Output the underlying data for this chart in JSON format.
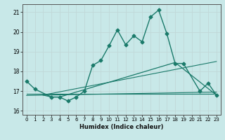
{
  "xlabel": "Humidex (Indice chaleur)",
  "ylabel": "",
  "bg_color": "#c8e8e8",
  "grid_color": "#c0d8d8",
  "line_color": "#1a7a6a",
  "xlim": [
    -0.5,
    23.5
  ],
  "ylim": [
    15.8,
    21.4
  ],
  "xticks": [
    0,
    1,
    2,
    3,
    4,
    5,
    6,
    7,
    8,
    9,
    10,
    11,
    12,
    13,
    14,
    15,
    16,
    17,
    18,
    19,
    20,
    21,
    22,
    23
  ],
  "yticks": [
    16,
    17,
    18,
    19,
    20,
    21
  ],
  "series": [
    {
      "x": [
        0,
        1,
        3,
        4,
        5,
        6,
        7,
        8,
        9,
        10,
        11,
        12,
        13,
        14,
        15,
        16,
        17,
        18,
        19,
        21,
        22,
        23
      ],
      "y": [
        17.5,
        17.1,
        16.7,
        16.7,
        16.5,
        16.7,
        17.0,
        18.3,
        18.55,
        19.3,
        20.1,
        19.35,
        19.8,
        19.5,
        20.75,
        21.1,
        19.9,
        18.4,
        18.4,
        17.0,
        17.4,
        16.8
      ],
      "marker": "D",
      "markersize": 2.5,
      "linewidth": 1.0,
      "zorder": 3
    },
    {
      "x": [
        2,
        3,
        4,
        18,
        23
      ],
      "y": [
        16.8,
        16.7,
        16.7,
        18.45,
        16.8
      ],
      "marker": null,
      "markersize": 0,
      "linewidth": 0.9,
      "zorder": 2
    },
    {
      "x": [
        0,
        23
      ],
      "y": [
        16.85,
        16.85
      ],
      "marker": null,
      "markersize": 0,
      "linewidth": 0.8,
      "zorder": 2
    },
    {
      "x": [
        0,
        23
      ],
      "y": [
        16.78,
        16.95
      ],
      "marker": null,
      "markersize": 0,
      "linewidth": 0.8,
      "zorder": 2
    },
    {
      "x": [
        2,
        23
      ],
      "y": [
        16.8,
        18.5
      ],
      "marker": null,
      "markersize": 0,
      "linewidth": 0.8,
      "zorder": 2
    }
  ]
}
